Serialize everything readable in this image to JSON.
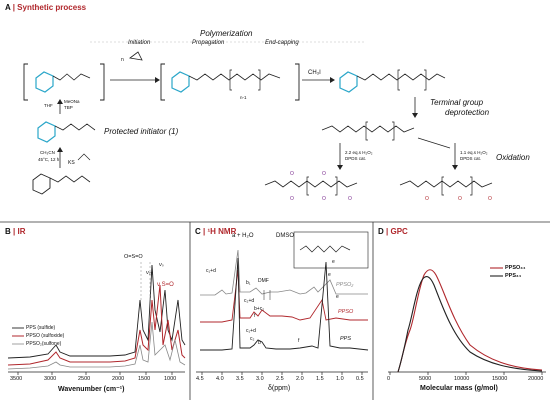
{
  "panel_a": {
    "letter": "A",
    "title": "Synthetic process",
    "stage_header": "Polymerization",
    "steps": [
      "Initiation",
      "Propagation",
      "End-capping"
    ],
    "reagent_ch3i": "CH₃I",
    "reagent_n": "n",
    "label_terminal": "Terminal group",
    "label_deprotection": "deprotection",
    "label_oxidation": "Oxidation",
    "label_protected_initiator": "Protected initiator (1)",
    "conditions_left": [
      "THF",
      "MeONa",
      "TBP"
    ],
    "conditions_bottom": [
      "CH₃CN",
      "45°C, 12 h",
      "KS"
    ],
    "oxidation_cond_1": [
      "2.2 eq.s H₂O₂",
      "DPDS cat."
    ],
    "oxidation_cond_2": [
      "1.1 eq.s H₂O₂",
      "DPDS cat."
    ],
    "subscript_n1": "n-1"
  },
  "panel_b": {
    "letter": "B",
    "title": "IR",
    "annotations": [
      "O=S=O",
      "ν₂ₓ",
      "νₛ",
      "ν S=O"
    ],
    "legend": [
      "PPS (sulfide)",
      "PPSO (sulfoxide)",
      "PPSO₂(sulfone)"
    ],
    "xlabel": "Wavenumber (cm⁻¹)",
    "xticks": [
      "3500",
      "3000",
      "2500",
      "2000",
      "1500",
      "1000"
    ]
  },
  "panel_c": {
    "letter": "C",
    "title": "¹H NMR",
    "peak_labels": [
      "a + H₂O",
      "DMSO",
      "DMF",
      "c₁+d",
      "b₁",
      "e",
      "c₂+d",
      "b+c₂",
      "f",
      "e",
      "c₁+d",
      "c₂",
      "b",
      "f",
      "e"
    ],
    "trace_labels": [
      "PPSO₂",
      "PPSO",
      "PPS"
    ],
    "xlabel": "δ(ppm)",
    "xticks": [
      "4.5",
      "4.0",
      "3.5",
      "3.0",
      "2.5",
      "2.0",
      "1.5",
      "1.0",
      "0.5"
    ]
  },
  "panel_d": {
    "letter": "D",
    "title": "GPC",
    "legend": [
      "PPSO₃₄",
      "PPS₃₄"
    ],
    "xlabel": "Molecular mass (g/mol)",
    "xticks": [
      "0",
      "5000",
      "10000",
      "15000",
      "20000"
    ]
  },
  "colors": {
    "accent": "#b0272c",
    "pps": "#222222",
    "ppso": "#b0272c",
    "ppso2": "#888888",
    "protect": "#2aa6c9",
    "sulfone": "#7a2b8f"
  }
}
